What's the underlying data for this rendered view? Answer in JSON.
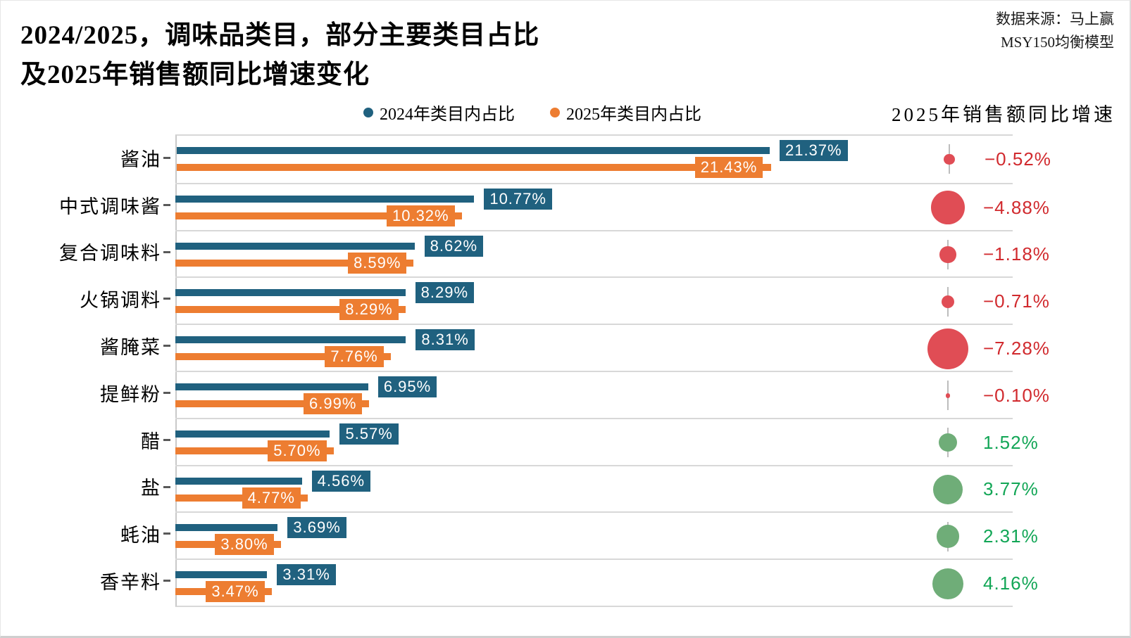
{
  "header": {
    "title_line1": "2024/2025，调味品类目，部分主要类目占比",
    "title_line2": "及2025年销售额同比增速变化",
    "source_line1": "数据来源：马上赢",
    "source_line2": "MSY150均衡模型",
    "growth_column_header": "2025年销售额同比增速"
  },
  "legend": {
    "items": [
      {
        "label": "2024年类目内占比",
        "color": "#20617F"
      },
      {
        "label": "2025年类目内占比",
        "color": "#ED7D31"
      }
    ]
  },
  "colors": {
    "bar_2024": "#20617F",
    "bar_2025": "#ED7D31",
    "bubble_negative": "#E04D55",
    "bubble_positive": "#6FAD78",
    "text_negative": "#D12A2E",
    "text_positive": "#12A656",
    "gridline": "#D8D8D8"
  },
  "chart_data": {
    "type": "bar",
    "orientation": "horizontal",
    "title": "2024/2025，调味品类目，部分主要类目占比及2025年销售额同比增速变化",
    "categories": [
      "酱油",
      "中式调味酱",
      "复合调味料",
      "火锅调料",
      "酱腌菜",
      "提鲜粉",
      "醋",
      "盐",
      "蚝油",
      "香辛料"
    ],
    "series": [
      {
        "name": "2024年类目内占比",
        "color": "#20617F",
        "values": [
          21.37,
          10.77,
          8.62,
          8.29,
          8.31,
          6.95,
          5.57,
          4.56,
          3.69,
          3.31
        ]
      },
      {
        "name": "2025年类目内占比",
        "color": "#ED7D31",
        "values": [
          21.43,
          10.32,
          8.59,
          8.29,
          7.76,
          6.99,
          5.7,
          4.77,
          3.8,
          3.47
        ]
      }
    ],
    "bubble_series": {
      "name": "2025年销售额同比增速",
      "values": [
        -0.52,
        -4.88,
        -1.18,
        -0.71,
        -7.28,
        -0.1,
        1.52,
        3.77,
        2.31,
        4.16
      ]
    },
    "xlim": [
      0,
      30
    ],
    "grid": true,
    "legend_position": "top-center",
    "value_label_format": "0.00%"
  },
  "rows": [
    {
      "label": "酱油",
      "v2024": "21.37%",
      "v2025": "21.43%",
      "growth": "−0.52%"
    },
    {
      "label": "中式调味酱",
      "v2024": "10.77%",
      "v2025": "10.32%",
      "growth": "−4.88%"
    },
    {
      "label": "复合调味料",
      "v2024": "8.62%",
      "v2025": "8.59%",
      "growth": "−1.18%"
    },
    {
      "label": "火锅调料",
      "v2024": "8.29%",
      "v2025": "8.29%",
      "growth": "−0.71%"
    },
    {
      "label": "酱腌菜",
      "v2024": "8.31%",
      "v2025": "7.76%",
      "growth": "−7.28%"
    },
    {
      "label": "提鲜粉",
      "v2024": "6.95%",
      "v2025": "6.99%",
      "growth": "−0.10%"
    },
    {
      "label": "醋",
      "v2024": "5.57%",
      "v2025": "5.70%",
      "growth": "1.52%"
    },
    {
      "label": "盐",
      "v2024": "4.56%",
      "v2025": "4.77%",
      "growth": "3.77%"
    },
    {
      "label": "蚝油",
      "v2024": "3.69%",
      "v2025": "3.80%",
      "growth": "2.31%"
    },
    {
      "label": "香辛料",
      "v2024": "3.31%",
      "v2025": "3.47%",
      "growth": "4.16%"
    }
  ]
}
